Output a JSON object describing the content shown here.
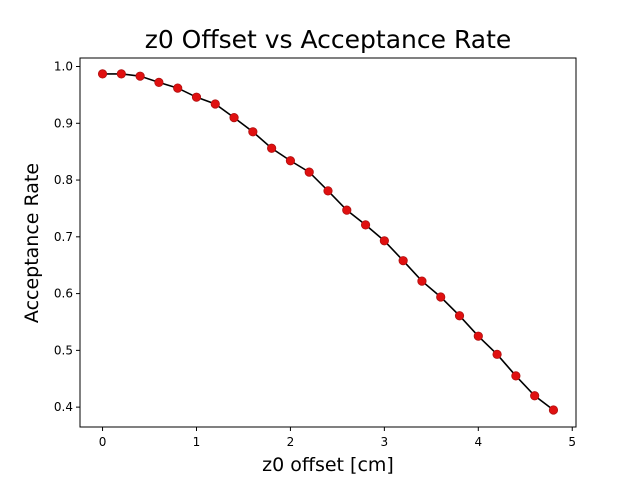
{
  "chart_data": {
    "type": "line",
    "title": "z0 Offset vs Acceptance Rate",
    "xlabel": "z0 offset [cm]",
    "ylabel": "Acceptance Rate",
    "xlim": [
      -0.24,
      5.04
    ],
    "ylim": [
      0.365,
      1.015
    ],
    "xticks": [
      0,
      1,
      2,
      3,
      4,
      5
    ],
    "xtick_labels": [
      "0",
      "1",
      "2",
      "3",
      "4",
      "5"
    ],
    "yticks": [
      0.4,
      0.5,
      0.6,
      0.7,
      0.8,
      0.9,
      1.0
    ],
    "ytick_labels": [
      "0.4",
      "0.5",
      "0.6",
      "0.7",
      "0.8",
      "0.9",
      "1.0"
    ],
    "grid": false,
    "line_color": "#000000",
    "marker_color": "#e01010",
    "x": [
      0.0,
      0.2,
      0.4,
      0.6,
      0.8,
      1.0,
      1.2,
      1.4,
      1.6,
      1.8,
      2.0,
      2.2,
      2.4,
      2.6,
      2.8,
      3.0,
      3.2,
      3.4,
      3.6,
      3.8,
      4.0,
      4.2,
      4.4,
      4.6,
      4.8
    ],
    "y": [
      0.987,
      0.987,
      0.983,
      0.972,
      0.962,
      0.946,
      0.934,
      0.91,
      0.885,
      0.856,
      0.834,
      0.814,
      0.781,
      0.747,
      0.721,
      0.693,
      0.658,
      0.622,
      0.594,
      0.561,
      0.525,
      0.493,
      0.455,
      0.42,
      0.395
    ]
  }
}
